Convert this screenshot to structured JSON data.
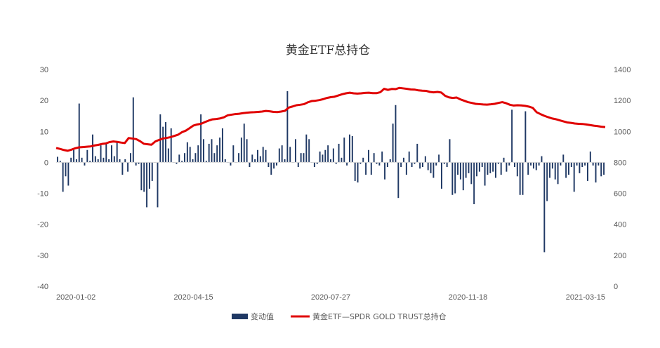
{
  "chart_data": {
    "type": "bar+line",
    "title": "黄金ETF总持仓",
    "x_tick_labels": [
      "2020-01-02",
      "2020-04-15",
      "2020-07-27",
      "2020-11-18",
      "2021-03-15"
    ],
    "ylim_left": [
      -40,
      30
    ],
    "yticks_left": [
      "30",
      "20",
      "10",
      "0",
      "-10",
      "-20",
      "-30",
      "-40"
    ],
    "ylim_right": [
      0,
      1400
    ],
    "yticks_right": [
      "1400",
      "1200",
      "1000",
      "800",
      "600",
      "400",
      "200",
      "0"
    ],
    "grid": false,
    "legend_position": "bottom",
    "colors": {
      "bar": "#1f3864",
      "line": "#e00000"
    },
    "series": [
      {
        "name": "变动值",
        "type": "bar",
        "axis": "left",
        "values": [
          1.8,
          0.5,
          -9.5,
          -4.5,
          -7.5,
          1.5,
          4,
          1,
          19,
          1.5,
          -1,
          4,
          0.5,
          9,
          2,
          1,
          5.5,
          1.5,
          6,
          1,
          5.5,
          2,
          6.5,
          1,
          -4,
          1,
          -3,
          3,
          21,
          -1,
          -0.5,
          -9,
          -9.5,
          -14.5,
          -8.5,
          -6,
          0,
          -14.5,
          15.5,
          11.5,
          13,
          4.5,
          11,
          0,
          -0.5,
          2.5,
          0.5,
          3,
          6.5,
          5,
          1,
          3,
          5.5,
          15.5,
          7.5,
          0.5,
          6,
          7.5,
          3,
          5.5,
          8,
          11,
          1,
          0,
          -1,
          5.5,
          0,
          3,
          8,
          12.5,
          7.5,
          -1.5,
          2.5,
          1,
          4,
          2,
          5,
          4,
          -1.5,
          -4,
          -2,
          -1,
          4.5,
          5.5,
          1,
          23,
          5,
          0,
          7.5,
          -1.5,
          3,
          3,
          9,
          7.5,
          0,
          -1.5,
          -0.5,
          3.5,
          2.5,
          4,
          5.5,
          1,
          4.5,
          -0.5,
          6,
          1.5,
          8,
          -1,
          9,
          8.5,
          -6,
          -6.5,
          -0.5,
          1.5,
          -4,
          4,
          -4,
          3,
          -0.5,
          -1,
          3.5,
          -5.5,
          -1.5,
          1,
          12.5,
          18.5,
          -11.5,
          -1.5,
          1.5,
          -4,
          3.5,
          -1.5,
          -0.5,
          6,
          -2,
          -1.5,
          2,
          -2.5,
          -3.5,
          -5,
          -1,
          2.5,
          -8.5,
          -0.5,
          -1.5,
          7.5,
          -10.5,
          -10,
          -4,
          -5.5,
          -9,
          -5,
          -3.5,
          -7,
          -13.5,
          -4.5,
          -3,
          -1.5,
          -7.5,
          -4,
          -3.5,
          -3,
          -5,
          -0.5,
          -4,
          1.5,
          -3,
          -1,
          17,
          -1.5,
          -4.5,
          -10.5,
          -10.5,
          16.5,
          -4,
          -1,
          -2,
          -2.5,
          -1,
          2,
          -29,
          -12.5,
          -5,
          -2,
          -5.5,
          -7,
          -1,
          2.5,
          -5,
          -4,
          -1.5,
          -9.5,
          -1,
          -3.5,
          -1.5,
          -1,
          -6,
          3.5,
          -1,
          -6.5,
          -1,
          -4.5,
          -4
        ]
      },
      {
        "name": "黄金ETF—SPDR GOLD TRUST总持仓",
        "type": "line",
        "axis": "right",
        "values": [
          893,
          887,
          880,
          875,
          882,
          891,
          897,
          899,
          901,
          903,
          909,
          913,
          919,
          922,
          931,
          935,
          932,
          928,
          925,
          957,
          954,
          950,
          937,
          920,
          917,
          914,
          935,
          945,
          954,
          958,
          963,
          971,
          979,
          995,
          1005,
          1021,
          1038,
          1045,
          1049,
          1060,
          1070,
          1078,
          1080,
          1084,
          1091,
          1104,
          1108,
          1112,
          1114,
          1118,
          1121,
          1123,
          1124,
          1126,
          1128,
          1132,
          1130,
          1126,
          1125,
          1128,
          1133,
          1154,
          1161,
          1169,
          1172,
          1176,
          1188,
          1196,
          1198,
          1202,
          1208,
          1216,
          1221,
          1224,
          1232,
          1240,
          1246,
          1250,
          1246,
          1244,
          1246,
          1249,
          1250,
          1247,
          1247,
          1253,
          1275,
          1268,
          1274,
          1273,
          1281,
          1278,
          1275,
          1271,
          1270,
          1265,
          1263,
          1262,
          1255,
          1252,
          1255,
          1251,
          1230,
          1220,
          1216,
          1219,
          1207,
          1198,
          1189,
          1184,
          1178,
          1176,
          1174,
          1173,
          1175,
          1178,
          1184,
          1189,
          1182,
          1172,
          1167,
          1169,
          1168,
          1165,
          1160,
          1152,
          1124,
          1112,
          1101,
          1092,
          1084,
          1079,
          1072,
          1065,
          1058,
          1055,
          1051,
          1049,
          1048,
          1045,
          1041,
          1037,
          1034,
          1030,
          1028
        ]
      }
    ]
  }
}
